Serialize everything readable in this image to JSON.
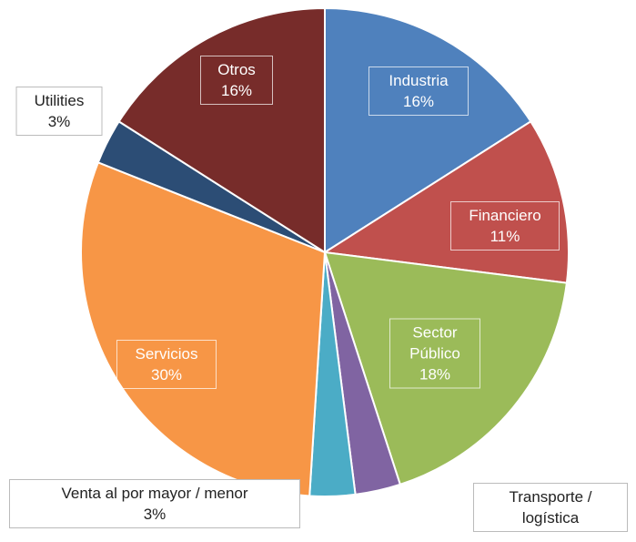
{
  "chart_data": {
    "type": "pie",
    "categories": [
      "Industria",
      "Financiero",
      "Sector Público",
      "Transporte / logística",
      "Venta al por mayor / menor",
      "Servicios",
      "Utilities",
      "Otros"
    ],
    "values": [
      16,
      11,
      18,
      3,
      3,
      30,
      3,
      16
    ],
    "value_labels": [
      "16%",
      "11%",
      "18%",
      null,
      "3%",
      "30%",
      "3%",
      "16%"
    ],
    "colors": [
      "#4f81bd",
      "#c0504d",
      "#9bbb59",
      "#8064a2",
      "#4bacc6",
      "#f79646",
      "#2c4d75",
      "#772c2a"
    ]
  }
}
